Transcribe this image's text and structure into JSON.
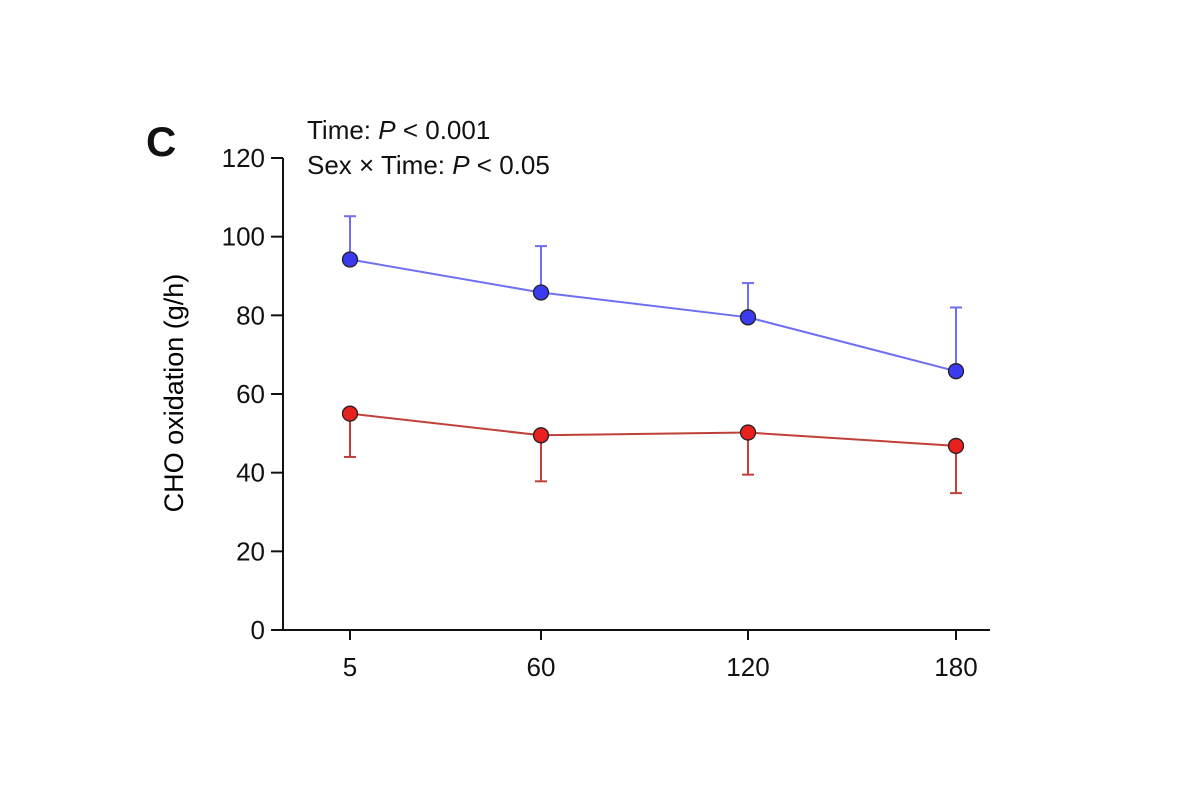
{
  "panel_label": "C",
  "annotations": {
    "line1": {
      "prefix": "Time: ",
      "italic": "P",
      "suffix": " < 0.001"
    },
    "line2": {
      "prefix": "Sex × Time: ",
      "italic": "P",
      "suffix": " < 0.05"
    }
  },
  "chart_data": {
    "type": "line",
    "title": "",
    "xlabel": "",
    "ylabel": "CHO oxidation (g/h)",
    "x": [
      5,
      60,
      120,
      180
    ],
    "x_tick_labels": [
      "5",
      "60",
      "120",
      "180"
    ],
    "ylim": [
      0,
      120
    ],
    "y_ticks": [
      0,
      20,
      40,
      60,
      80,
      100,
      120
    ],
    "grid": false,
    "legend": "none",
    "series": [
      {
        "color": "#3a3aee",
        "line_color": "#6f6ff2",
        "values": [
          94.2,
          85.8,
          79.5,
          65.8
        ],
        "error_upper": [
          105.2,
          97.6,
          88.2,
          82.0
        ]
      },
      {
        "color": "#e8201e",
        "line_color": "#c0403a",
        "values": [
          55.0,
          49.5,
          50.2,
          46.8
        ],
        "error_lower": [
          44.0,
          37.8,
          39.5,
          34.8
        ]
      }
    ]
  }
}
